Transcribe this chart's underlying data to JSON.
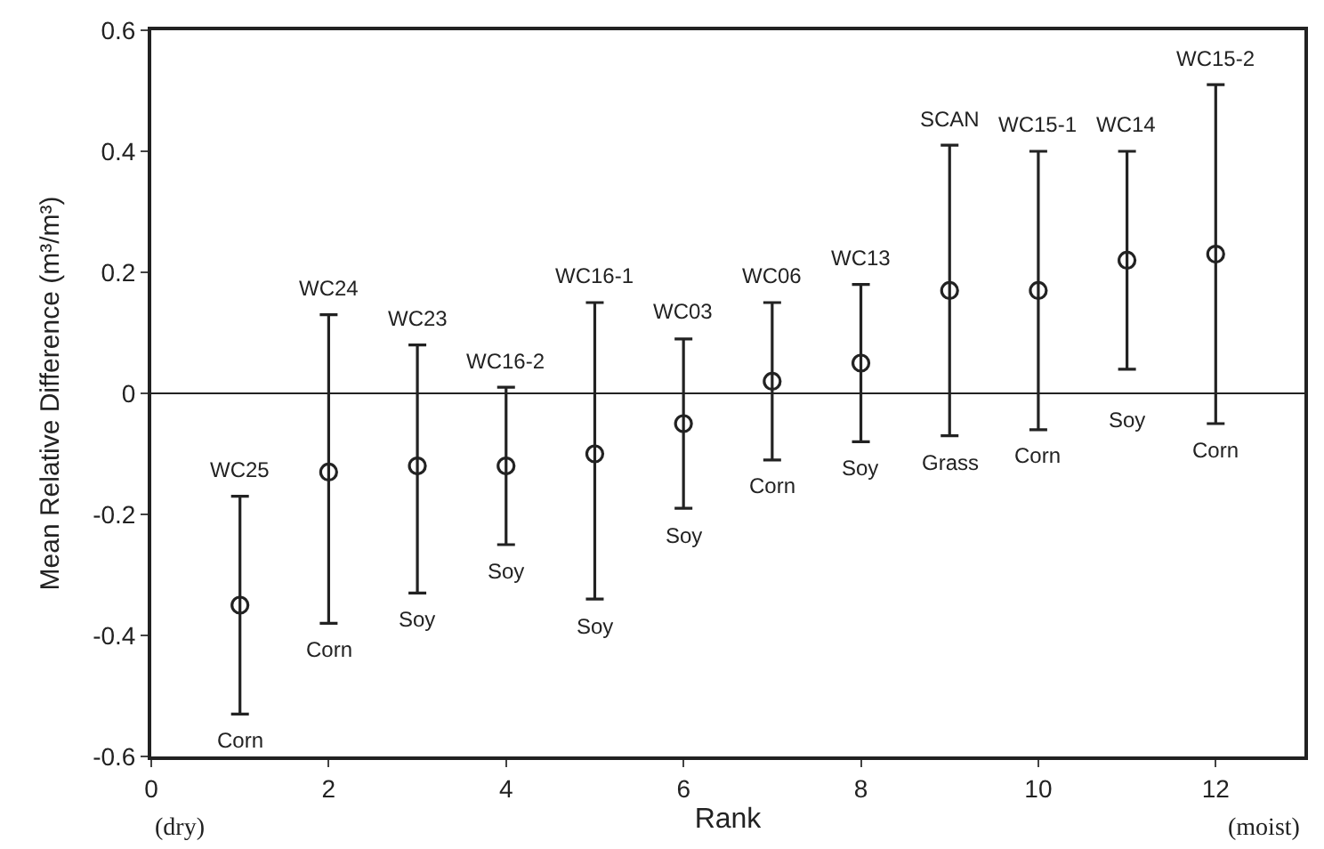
{
  "chart_data": {
    "type": "scatter",
    "xlabel": "Rank",
    "ylabel": "Mean Relative Difference (m³/m³)",
    "x": [
      1,
      2,
      3,
      4,
      5,
      6,
      7,
      8,
      9,
      10,
      11,
      12
    ],
    "series": [
      {
        "color": "#222222",
        "values": [
          -0.35,
          -0.13,
          -0.12,
          -0.12,
          -0.1,
          -0.05,
          0.02,
          0.05,
          0.17,
          0.17,
          0.22,
          0.23
        ],
        "errors": [
          [
            -0.53,
            -0.17
          ],
          [
            -0.38,
            0.13
          ],
          [
            -0.33,
            0.08
          ],
          [
            -0.25,
            0.01
          ],
          [
            -0.34,
            0.15
          ],
          [
            -0.19,
            0.09
          ],
          [
            -0.11,
            0.15
          ],
          [
            -0.08,
            0.18
          ],
          [
            -0.07,
            0.41
          ],
          [
            -0.06,
            0.4
          ],
          [
            0.04,
            0.4
          ],
          [
            -0.05,
            0.51
          ]
        ]
      }
    ],
    "marker": "circle",
    "xlim": [
      0,
      13
    ],
    "xticks": [
      0,
      2,
      4,
      6,
      8,
      10,
      12
    ],
    "ylim": [
      -0.6,
      0.6
    ],
    "yticks": [
      -0.6,
      -0.4,
      -0.2,
      0,
      0.2,
      0.4,
      0.6
    ],
    "ref_lines": [
      {
        "axis": "y",
        "value": 0,
        "color": "#222222"
      }
    ],
    "annotations": [
      {
        "text": "WC25",
        "x": 1,
        "y": -0.17
      },
      {
        "text": "Corn",
        "x": 1,
        "y": -0.53
      },
      {
        "text": "WC24",
        "x": 2,
        "y": 0.13
      },
      {
        "text": "Corn",
        "x": 2,
        "y": -0.38
      },
      {
        "text": "WC23",
        "x": 3,
        "y": 0.08
      },
      {
        "text": "Soy",
        "x": 3,
        "y": -0.33
      },
      {
        "text": "WC16-2",
        "x": 4,
        "y": 0.01
      },
      {
        "text": "Soy",
        "x": 4,
        "y": -0.25
      },
      {
        "text": "WC16-1",
        "x": 5,
        "y": 0.15
      },
      {
        "text": "Soy",
        "x": 5,
        "y": -0.34
      },
      {
        "text": "WC03",
        "x": 6,
        "y": 0.09
      },
      {
        "text": "Soy",
        "x": 6,
        "y": -0.19
      },
      {
        "text": "WC06",
        "x": 7,
        "y": 0.15
      },
      {
        "text": "Corn",
        "x": 7,
        "y": -0.11
      },
      {
        "text": "WC13",
        "x": 8,
        "y": 0.18
      },
      {
        "text": "Soy",
        "x": 8,
        "y": -0.08
      },
      {
        "text": "SCAN",
        "x": 9,
        "y": 0.41
      },
      {
        "text": "Grass",
        "x": 9,
        "y": -0.07
      },
      {
        "text": "WC15-1",
        "x": 10,
        "y": 0.4
      },
      {
        "text": "Corn",
        "x": 10,
        "y": -0.06
      },
      {
        "text": "WC14",
        "x": 11,
        "y": 0.4
      },
      {
        "text": "Soy",
        "x": 11,
        "y": 0.04
      },
      {
        "text": "WC15-2",
        "x": 12,
        "y": 0.51
      },
      {
        "text": "Corn",
        "x": 12,
        "y": -0.05
      },
      "(dry)",
      "(moist)"
    ]
  }
}
